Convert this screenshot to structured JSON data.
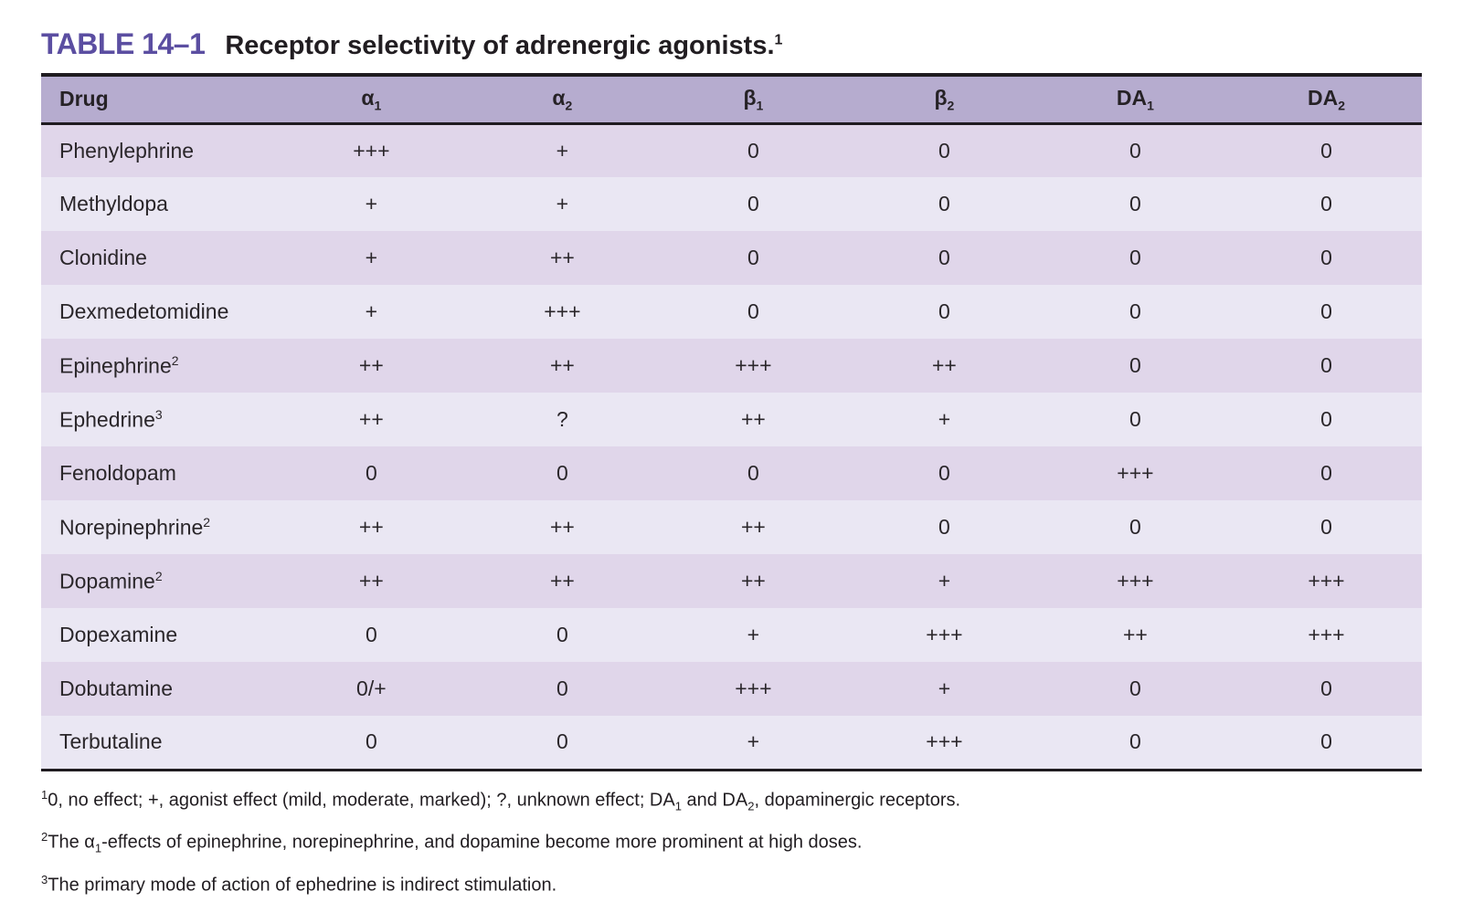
{
  "title": {
    "label": "TABLE 14–1",
    "text": "Receptor selectivity of adrenergic agonists.",
    "footnote_marker": "1"
  },
  "table": {
    "columns": [
      {
        "base": "Drug",
        "sub": ""
      },
      {
        "base": "α",
        "sub": "1"
      },
      {
        "base": "α",
        "sub": "2"
      },
      {
        "base": "β",
        "sub": "1"
      },
      {
        "base": "β",
        "sub": "2"
      },
      {
        "base": "DA",
        "sub": "1"
      },
      {
        "base": "DA",
        "sub": "2"
      }
    ],
    "rows": [
      {
        "drug": "Phenylephrine",
        "sup": "",
        "values": [
          "+++",
          "+",
          "0",
          "0",
          "0",
          "0"
        ]
      },
      {
        "drug": "Methyldopa",
        "sup": "",
        "values": [
          "+",
          "+",
          "0",
          "0",
          "0",
          "0"
        ]
      },
      {
        "drug": "Clonidine",
        "sup": "",
        "values": [
          "+",
          "++",
          "0",
          "0",
          "0",
          "0"
        ]
      },
      {
        "drug": "Dexmedetomidine",
        "sup": "",
        "values": [
          "+",
          "+++",
          "0",
          "0",
          "0",
          "0"
        ]
      },
      {
        "drug": "Epinephrine",
        "sup": "2",
        "values": [
          "++",
          "++",
          "+++",
          "++",
          "0",
          "0"
        ]
      },
      {
        "drug": "Ephedrine",
        "sup": "3",
        "values": [
          "++",
          "?",
          "++",
          "+",
          "0",
          "0"
        ]
      },
      {
        "drug": "Fenoldopam",
        "sup": "",
        "values": [
          "0",
          "0",
          "0",
          "0",
          "+++",
          "0"
        ]
      },
      {
        "drug": "Norepinephrine",
        "sup": "2",
        "values": [
          "++",
          "++",
          "++",
          "0",
          "0",
          "0"
        ]
      },
      {
        "drug": "Dopamine",
        "sup": "2",
        "values": [
          "++",
          "++",
          "++",
          "+",
          "+++",
          "+++"
        ]
      },
      {
        "drug": "Dopexamine",
        "sup": "",
        "values": [
          "0",
          "0",
          "+",
          "+++",
          "++",
          "+++"
        ]
      },
      {
        "drug": "Dobutamine",
        "sup": "",
        "values": [
          "0/+",
          "0",
          "+++",
          "+",
          "0",
          "0"
        ]
      },
      {
        "drug": "Terbutaline",
        "sup": "",
        "values": [
          "0",
          "0",
          "+",
          "+++",
          "0",
          "0"
        ]
      }
    ]
  },
  "footnotes": [
    {
      "marker": "1",
      "segments": [
        {
          "t": "text",
          "v": "0, no effect; +, agonist effect (mild, moderate, marked); ?, unknown effect; DA"
        },
        {
          "t": "sub",
          "v": "1"
        },
        {
          "t": "text",
          "v": " and DA"
        },
        {
          "t": "sub",
          "v": "2"
        },
        {
          "t": "text",
          "v": ", dopaminergic receptors."
        }
      ]
    },
    {
      "marker": "2",
      "segments": [
        {
          "t": "text",
          "v": "The α"
        },
        {
          "t": "sub",
          "v": "1"
        },
        {
          "t": "text",
          "v": "-effects of epinephrine, norepinephrine, and dopamine become more prominent at high doses."
        }
      ]
    },
    {
      "marker": "3",
      "segments": [
        {
          "t": "text",
          "v": "The primary mode of action of ephedrine is indirect stimulation."
        }
      ]
    }
  ],
  "colors": {
    "title_purple": "#5b4ea1",
    "header_bg": "#b6accf",
    "row_odd_bg": "#e0d6ea",
    "row_even_bg": "#eae7f3",
    "rule_black": "#1f1b20"
  }
}
